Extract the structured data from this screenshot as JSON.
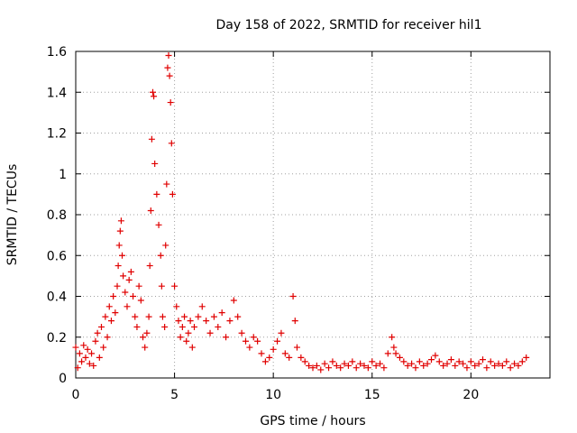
{
  "chart_data": {
    "type": "scatter",
    "title": "Day 158 of 2022, SRMTID for receiver hil1",
    "xlabel": "GPS time / hours",
    "ylabel": "SRMTID / TECUs",
    "xlim": [
      0,
      24
    ],
    "ylim": [
      0,
      1.6
    ],
    "x_ticks": [
      0,
      5,
      10,
      15,
      20
    ],
    "x_tick_labels": [
      "0",
      "5",
      "10",
      "15",
      "20"
    ],
    "y_ticks": [
      0,
      0.2,
      0.4,
      0.6,
      0.8,
      1.0,
      1.2,
      1.4,
      1.6
    ],
    "y_tick_labels": [
      "0",
      "0.2",
      "0.4",
      "0.6",
      "0.8",
      "1",
      "1.2",
      "1.4",
      "1.6"
    ],
    "grid": true,
    "marker": "+",
    "series_color": "#e00000",
    "series": [
      {
        "name": "SRMTID",
        "points": [
          [
            0.0,
            0.15
          ],
          [
            0.1,
            0.05
          ],
          [
            0.2,
            0.12
          ],
          [
            0.3,
            0.08
          ],
          [
            0.4,
            0.16
          ],
          [
            0.5,
            0.1
          ],
          [
            0.6,
            0.14
          ],
          [
            0.7,
            0.07
          ],
          [
            0.8,
            0.12
          ],
          [
            0.9,
            0.06
          ],
          [
            1.0,
            0.18
          ],
          [
            1.1,
            0.22
          ],
          [
            1.2,
            0.1
          ],
          [
            1.3,
            0.25
          ],
          [
            1.4,
            0.15
          ],
          [
            1.5,
            0.3
          ],
          [
            1.6,
            0.2
          ],
          [
            1.7,
            0.35
          ],
          [
            1.8,
            0.28
          ],
          [
            1.9,
            0.4
          ],
          [
            2.0,
            0.32
          ],
          [
            2.1,
            0.45
          ],
          [
            2.15,
            0.55
          ],
          [
            2.2,
            0.65
          ],
          [
            2.25,
            0.72
          ],
          [
            2.3,
            0.77
          ],
          [
            2.35,
            0.6
          ],
          [
            2.4,
            0.5
          ],
          [
            2.5,
            0.42
          ],
          [
            2.6,
            0.35
          ],
          [
            2.7,
            0.48
          ],
          [
            2.8,
            0.52
          ],
          [
            2.9,
            0.4
          ],
          [
            3.0,
            0.3
          ],
          [
            3.1,
            0.25
          ],
          [
            3.2,
            0.45
          ],
          [
            3.3,
            0.38
          ],
          [
            3.4,
            0.2
          ],
          [
            3.5,
            0.15
          ],
          [
            3.6,
            0.22
          ],
          [
            3.7,
            0.3
          ],
          [
            3.75,
            0.55
          ],
          [
            3.8,
            0.82
          ],
          [
            3.85,
            1.17
          ],
          [
            3.9,
            1.4
          ],
          [
            3.95,
            1.38
          ],
          [
            4.0,
            1.05
          ],
          [
            4.1,
            0.9
          ],
          [
            4.2,
            0.75
          ],
          [
            4.3,
            0.6
          ],
          [
            4.35,
            0.45
          ],
          [
            4.4,
            0.3
          ],
          [
            4.5,
            0.25
          ],
          [
            4.55,
            0.65
          ],
          [
            4.6,
            0.95
          ],
          [
            4.65,
            1.52
          ],
          [
            4.7,
            1.58
          ],
          [
            4.75,
            1.48
          ],
          [
            4.8,
            1.35
          ],
          [
            4.85,
            1.15
          ],
          [
            4.9,
            0.9
          ],
          [
            5.0,
            0.45
          ],
          [
            5.1,
            0.35
          ],
          [
            5.2,
            0.28
          ],
          [
            5.3,
            0.2
          ],
          [
            5.4,
            0.25
          ],
          [
            5.5,
            0.3
          ],
          [
            5.6,
            0.18
          ],
          [
            5.7,
            0.22
          ],
          [
            5.8,
            0.28
          ],
          [
            5.9,
            0.15
          ],
          [
            6.0,
            0.25
          ],
          [
            6.2,
            0.3
          ],
          [
            6.4,
            0.35
          ],
          [
            6.6,
            0.28
          ],
          [
            6.8,
            0.22
          ],
          [
            7.0,
            0.3
          ],
          [
            7.2,
            0.25
          ],
          [
            7.4,
            0.32
          ],
          [
            7.6,
            0.2
          ],
          [
            7.8,
            0.28
          ],
          [
            8.0,
            0.38
          ],
          [
            8.2,
            0.3
          ],
          [
            8.4,
            0.22
          ],
          [
            8.6,
            0.18
          ],
          [
            8.8,
            0.15
          ],
          [
            9.0,
            0.2
          ],
          [
            9.2,
            0.18
          ],
          [
            9.4,
            0.12
          ],
          [
            9.6,
            0.08
          ],
          [
            9.8,
            0.1
          ],
          [
            10.0,
            0.14
          ],
          [
            10.2,
            0.18
          ],
          [
            10.4,
            0.22
          ],
          [
            10.6,
            0.12
          ],
          [
            10.8,
            0.1
          ],
          [
            11.0,
            0.4
          ],
          [
            11.1,
            0.28
          ],
          [
            11.2,
            0.15
          ],
          [
            11.4,
            0.1
          ],
          [
            11.6,
            0.08
          ],
          [
            11.8,
            0.06
          ],
          [
            12.0,
            0.05
          ],
          [
            12.2,
            0.06
          ],
          [
            12.4,
            0.04
          ],
          [
            12.6,
            0.07
          ],
          [
            12.8,
            0.05
          ],
          [
            13.0,
            0.08
          ],
          [
            13.2,
            0.06
          ],
          [
            13.4,
            0.05
          ],
          [
            13.6,
            0.07
          ],
          [
            13.8,
            0.06
          ],
          [
            14.0,
            0.08
          ],
          [
            14.2,
            0.05
          ],
          [
            14.4,
            0.07
          ],
          [
            14.6,
            0.06
          ],
          [
            14.8,
            0.05
          ],
          [
            15.0,
            0.08
          ],
          [
            15.2,
            0.06
          ],
          [
            15.4,
            0.07
          ],
          [
            15.6,
            0.05
          ],
          [
            15.8,
            0.12
          ],
          [
            16.0,
            0.2
          ],
          [
            16.1,
            0.15
          ],
          [
            16.2,
            0.12
          ],
          [
            16.4,
            0.1
          ],
          [
            16.6,
            0.08
          ],
          [
            16.8,
            0.06
          ],
          [
            17.0,
            0.07
          ],
          [
            17.2,
            0.05
          ],
          [
            17.4,
            0.08
          ],
          [
            17.6,
            0.06
          ],
          [
            17.8,
            0.07
          ],
          [
            18.0,
            0.09
          ],
          [
            18.2,
            0.11
          ],
          [
            18.4,
            0.08
          ],
          [
            18.6,
            0.06
          ],
          [
            18.8,
            0.07
          ],
          [
            19.0,
            0.09
          ],
          [
            19.2,
            0.06
          ],
          [
            19.4,
            0.08
          ],
          [
            19.6,
            0.07
          ],
          [
            19.8,
            0.05
          ],
          [
            20.0,
            0.08
          ],
          [
            20.2,
            0.06
          ],
          [
            20.4,
            0.07
          ],
          [
            20.6,
            0.09
          ],
          [
            20.8,
            0.05
          ],
          [
            21.0,
            0.08
          ],
          [
            21.2,
            0.06
          ],
          [
            21.4,
            0.07
          ],
          [
            21.6,
            0.06
          ],
          [
            21.8,
            0.08
          ],
          [
            22.0,
            0.05
          ],
          [
            22.2,
            0.07
          ],
          [
            22.4,
            0.06
          ],
          [
            22.6,
            0.08
          ],
          [
            22.8,
            0.1
          ]
        ]
      }
    ]
  }
}
